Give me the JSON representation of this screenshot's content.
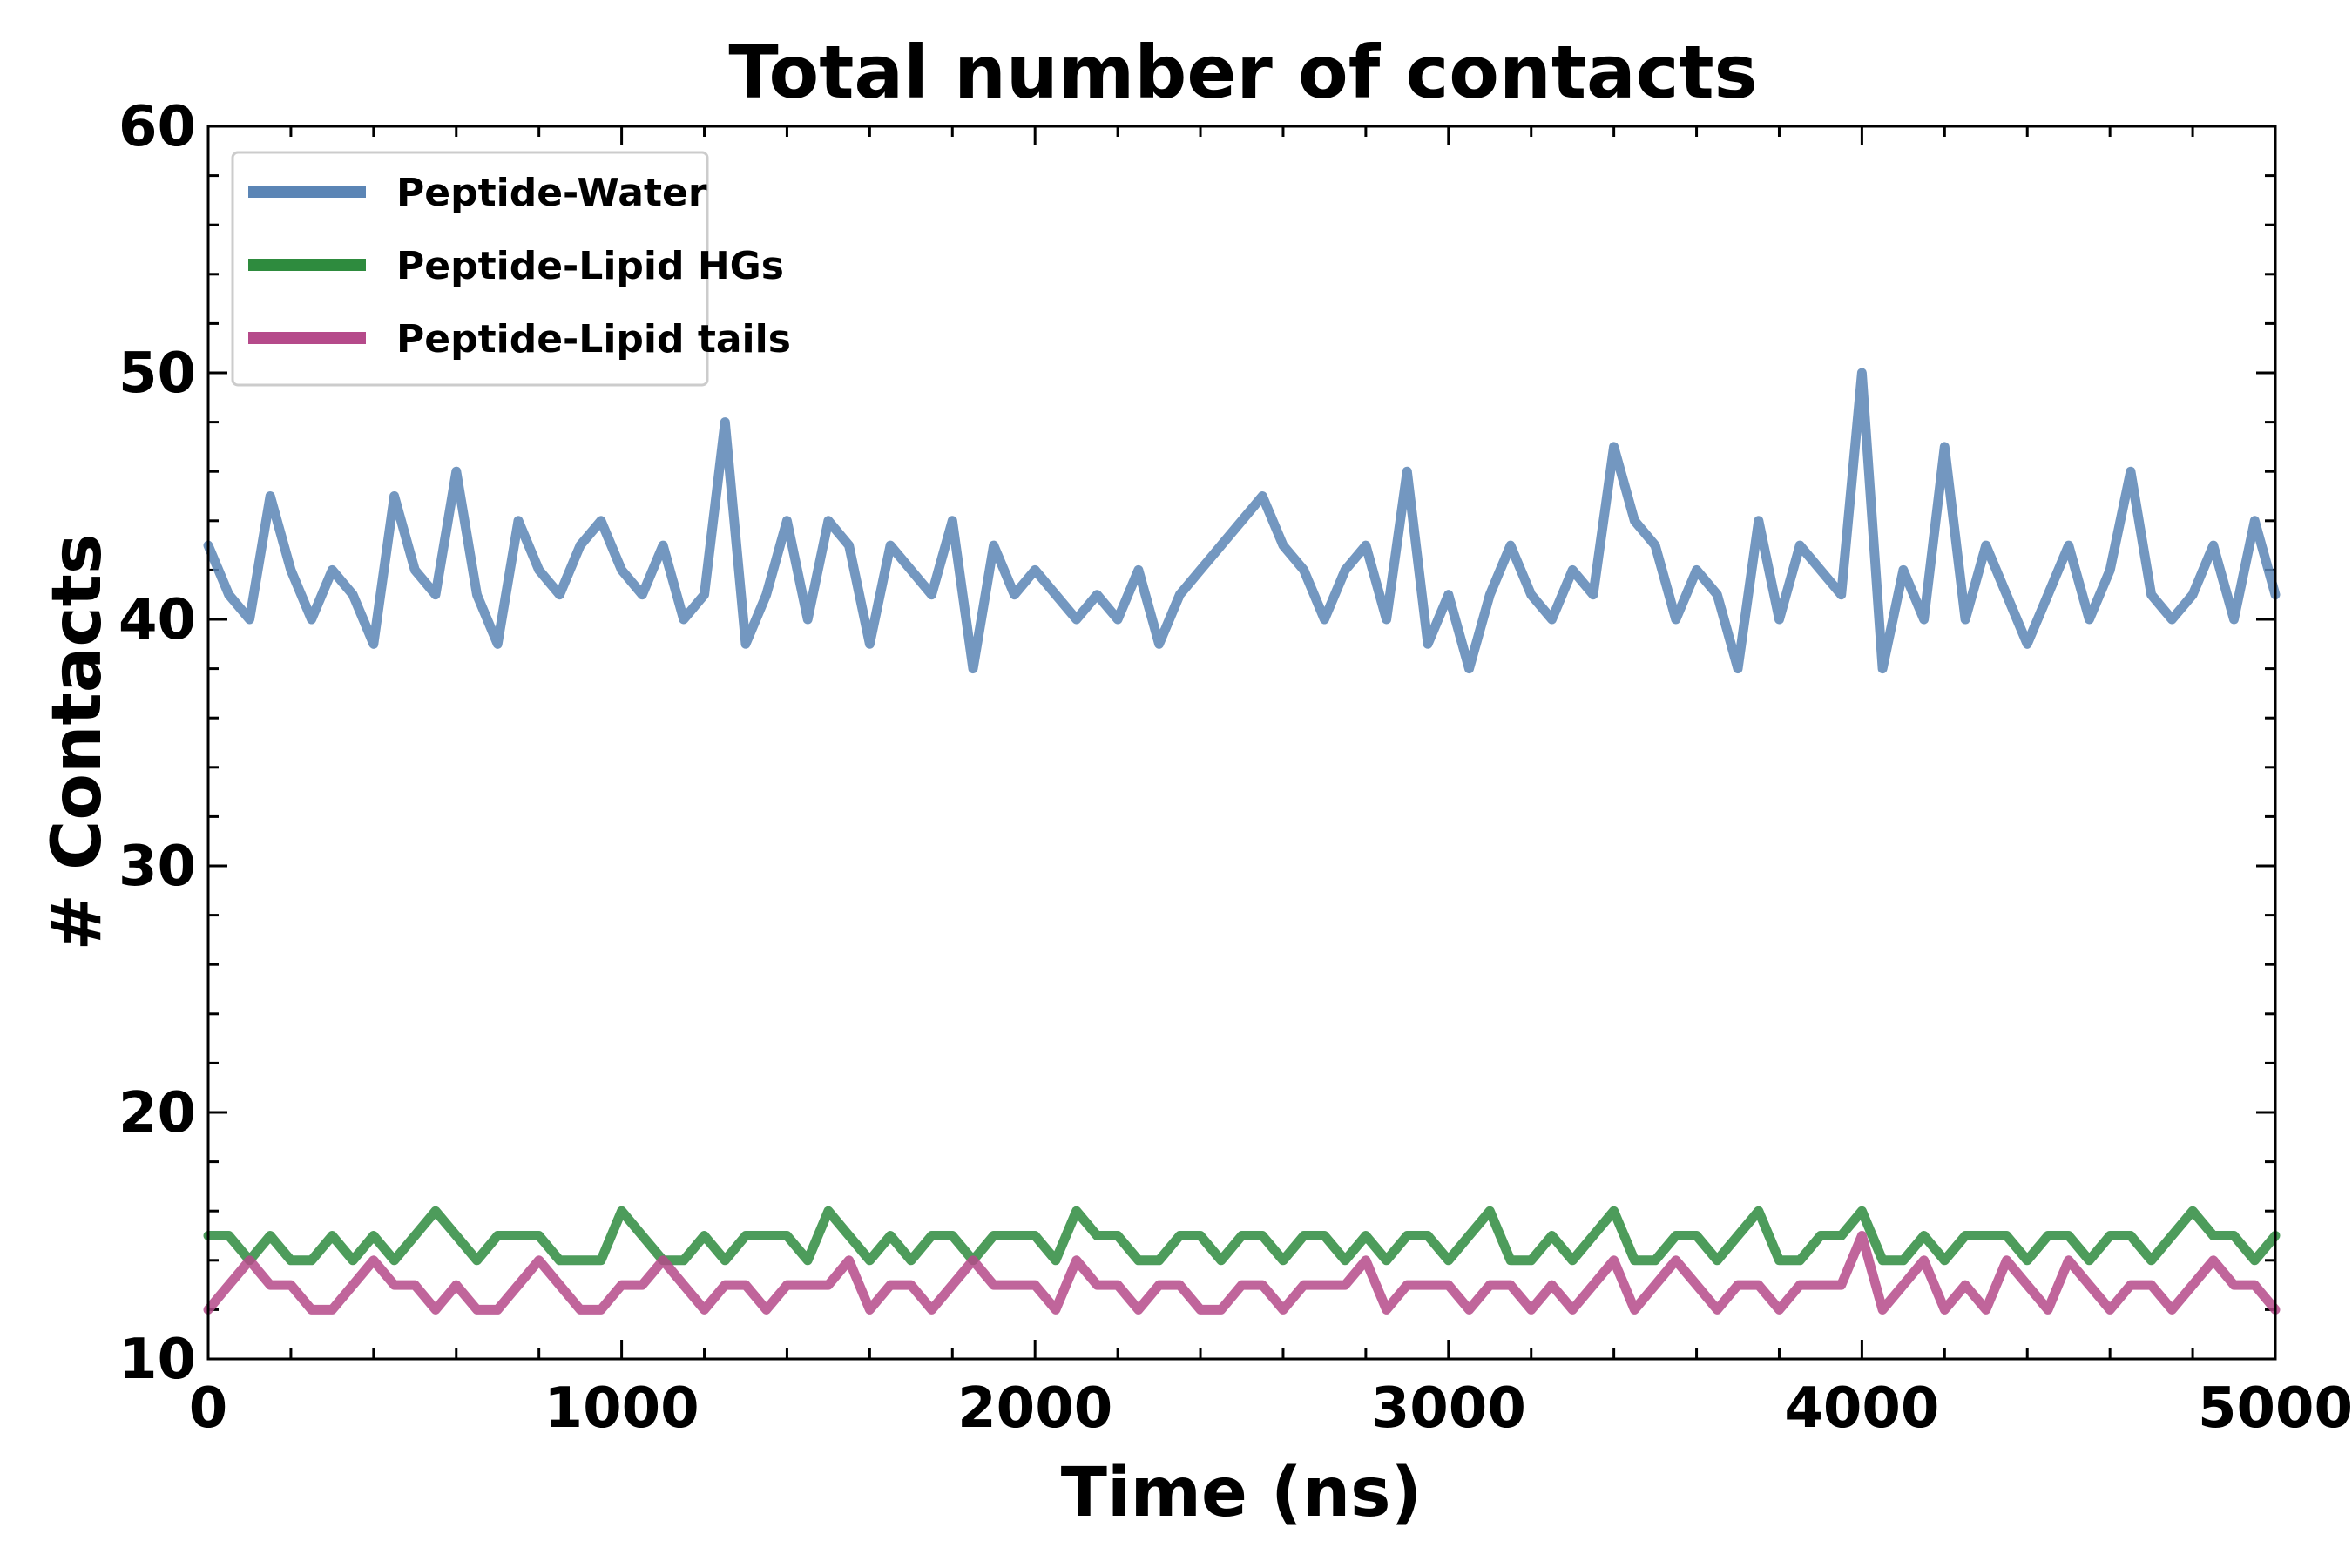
{
  "chart_data": {
    "type": "line",
    "title": "Total number of contacts",
    "xlabel": "Time (ns)",
    "ylabel": "# Contacts",
    "xlim": [
      0,
      5000
    ],
    "ylim": [
      10,
      60
    ],
    "xticks": [
      0,
      1000,
      2000,
      3000,
      4000,
      5000
    ],
    "xtick_labels": [
      "0",
      "1000",
      "2000",
      "3000",
      "4000",
      "5000"
    ],
    "yticks": [
      10,
      20,
      30,
      40,
      50,
      60
    ],
    "ytick_labels": [
      "10",
      "20",
      "30",
      "40",
      "50",
      "60"
    ],
    "x_minor_step": 200,
    "y_minor_step": 2,
    "grid": false,
    "legend_position": "top-left",
    "x": [
      0,
      50,
      100,
      150,
      200,
      250,
      300,
      350,
      400,
      450,
      500,
      550,
      600,
      650,
      700,
      750,
      800,
      850,
      900,
      950,
      1000,
      1050,
      1100,
      1150,
      1200,
      1250,
      1300,
      1350,
      1400,
      1450,
      1500,
      1550,
      1600,
      1650,
      1700,
      1750,
      1800,
      1850,
      1900,
      1950,
      2000,
      2050,
      2100,
      2150,
      2200,
      2250,
      2300,
      2350,
      2400,
      2450,
      2500,
      2550,
      2600,
      2650,
      2700,
      2750,
      2800,
      2850,
      2900,
      2950,
      3000,
      3050,
      3100,
      3150,
      3200,
      3250,
      3300,
      3350,
      3400,
      3450,
      3500,
      3550,
      3600,
      3650,
      3700,
      3750,
      3800,
      3850,
      3900,
      3950,
      4000,
      4050,
      4100,
      4150,
      4200,
      4250,
      4300,
      4350,
      4400,
      4450,
      4500,
      4550,
      4600,
      4650,
      4700,
      4750,
      4800,
      4850,
      4900,
      4950,
      5000
    ],
    "series": [
      {
        "name": "Peptide-Water",
        "color": "#5b85b5",
        "values": [
          43,
          41,
          40,
          45,
          42,
          40,
          42,
          41,
          39,
          45,
          42,
          41,
          46,
          41,
          39,
          44,
          42,
          41,
          43,
          44,
          42,
          41,
          43,
          40,
          41,
          48,
          39,
          41,
          44,
          40,
          44,
          43,
          39,
          43,
          42,
          41,
          44,
          38,
          43,
          41,
          42,
          41,
          40,
          41,
          40,
          42,
          39,
          41,
          42,
          43,
          44,
          45,
          43,
          42,
          40,
          42,
          43,
          40,
          46,
          39,
          41,
          38,
          41,
          43,
          41,
          40,
          42,
          41,
          47,
          44,
          43,
          40,
          42,
          41,
          38,
          44,
          40,
          43,
          42,
          41,
          50,
          38,
          42,
          40,
          47,
          40,
          43,
          41,
          39,
          41,
          43,
          40,
          42,
          46,
          41,
          40,
          41,
          43,
          40,
          44,
          41
        ]
      },
      {
        "name": "Peptide-Lipid HGs",
        "color": "#2e8b3e",
        "values": [
          15,
          15,
          14,
          15,
          14,
          14,
          15,
          14,
          15,
          14,
          15,
          16,
          15,
          14,
          15,
          15,
          15,
          14,
          14,
          14,
          16,
          15,
          14,
          14,
          15,
          14,
          15,
          15,
          15,
          14,
          16,
          15,
          14,
          15,
          14,
          15,
          15,
          14,
          15,
          15,
          15,
          14,
          16,
          15,
          15,
          14,
          14,
          15,
          15,
          14,
          15,
          15,
          14,
          15,
          15,
          14,
          15,
          14,
          15,
          15,
          14,
          15,
          16,
          14,
          14,
          15,
          14,
          15,
          16,
          14,
          14,
          15,
          15,
          14,
          15,
          16,
          14,
          14,
          15,
          15,
          16,
          14,
          14,
          15,
          14,
          15,
          15,
          15,
          14,
          15,
          15,
          14,
          15,
          15,
          14,
          15,
          16,
          15,
          15,
          14,
          15
        ]
      },
      {
        "name": "Peptide-Lipid tails",
        "color": "#b54a8a",
        "values": [
          12,
          13,
          14,
          13,
          13,
          12,
          12,
          13,
          14,
          13,
          13,
          12,
          13,
          12,
          12,
          13,
          14,
          13,
          12,
          12,
          13,
          13,
          14,
          13,
          12,
          13,
          13,
          12,
          13,
          13,
          13,
          14,
          12,
          13,
          13,
          12,
          13,
          14,
          13,
          13,
          13,
          12,
          14,
          13,
          13,
          12,
          13,
          13,
          12,
          12,
          13,
          13,
          12,
          13,
          13,
          13,
          14,
          12,
          13,
          13,
          13,
          12,
          13,
          13,
          12,
          13,
          12,
          13,
          14,
          12,
          13,
          14,
          13,
          12,
          13,
          13,
          12,
          13,
          13,
          13,
          15,
          12,
          13,
          14,
          12,
          13,
          12,
          14,
          13,
          12,
          14,
          13,
          12,
          13,
          13,
          12,
          13,
          14,
          13,
          13,
          12
        ]
      }
    ]
  }
}
